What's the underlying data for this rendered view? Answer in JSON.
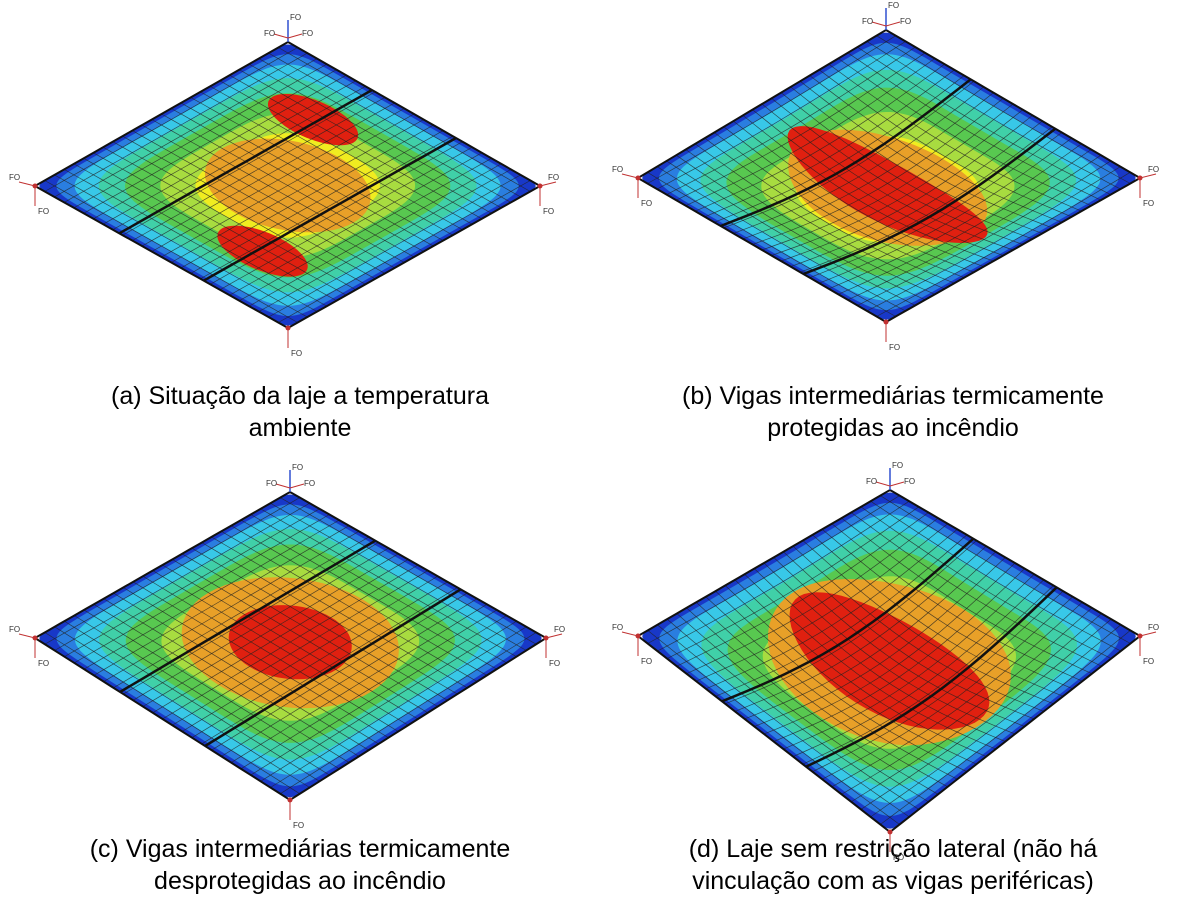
{
  "support_label": "FO",
  "panels": [
    {
      "caption": [
        "(a) Situação da laje a temperatura",
        "ambiente"
      ]
    },
    {
      "caption": [
        "(b) Vigas intermediárias termicamente",
        "protegidas ao incêndio"
      ]
    },
    {
      "caption": [
        "(c)  Vigas intermediárias termicamente",
        "desprotegidas ao incêndio"
      ]
    },
    {
      "caption": [
        "(d)  Laje sem restrição lateral (não há",
        "vinculação com as vigas periféricas)"
      ]
    }
  ]
}
